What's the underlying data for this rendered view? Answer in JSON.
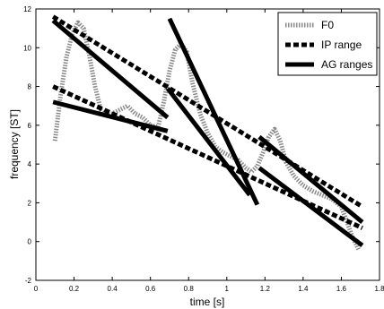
{
  "chart_data": {
    "type": "line",
    "xlabel": "time [s]",
    "ylabel": "frequency [ST]",
    "xlim": [
      0,
      1.8
    ],
    "ylim": [
      -2,
      12
    ],
    "xticks": [
      "0",
      "0.2",
      "0.4",
      "0.6",
      "0.8",
      "1",
      "1.2",
      "1.4",
      "1.6",
      "1.8"
    ],
    "yticks": [
      "-2",
      "0",
      "2",
      "4",
      "6",
      "8",
      "10",
      "12"
    ],
    "grid": false,
    "legend_position": "top-right",
    "series": [
      {
        "name": "F0",
        "style": "dotted-thick",
        "color": "#8a8a8a",
        "x": [
          0.1,
          0.13,
          0.16,
          0.19,
          0.22,
          0.25,
          0.28,
          0.31,
          0.34,
          0.37,
          0.4,
          0.44,
          0.48,
          0.52,
          0.56,
          0.6,
          0.64,
          0.67,
          0.7,
          0.73,
          0.76,
          0.79,
          0.82,
          0.86,
          0.9,
          0.94,
          0.98,
          1.02,
          1.06,
          1.1,
          1.13,
          1.16,
          1.19,
          1.22,
          1.25,
          1.28,
          1.31,
          1.35,
          1.4,
          1.45,
          1.5,
          1.55,
          1.6,
          1.63,
          1.66,
          1.69
        ],
        "y": [
          5.2,
          7.6,
          9.5,
          10.7,
          11.3,
          11.0,
          9.6,
          8.0,
          6.8,
          6.5,
          6.6,
          6.8,
          7.0,
          6.6,
          6.4,
          6.0,
          5.9,
          7.2,
          8.8,
          9.9,
          10.2,
          9.8,
          8.2,
          6.6,
          5.6,
          4.9,
          4.6,
          4.4,
          4.2,
          3.8,
          3.6,
          3.9,
          4.6,
          5.4,
          5.8,
          5.2,
          4.1,
          3.4,
          2.9,
          2.6,
          2.4,
          2.2,
          1.8,
          1.0,
          0.2,
          -0.4
        ]
      },
      {
        "name": "IP range",
        "style": "dashed-thick",
        "color": "#000000",
        "segments": [
          {
            "x": [
              0.09,
              1.71
            ],
            "y": [
              11.6,
              1.8
            ]
          },
          {
            "x": [
              0.09,
              1.71
            ],
            "y": [
              8.0,
              0.7
            ]
          }
        ]
      },
      {
        "name": "AG ranges",
        "style": "solid-thick",
        "color": "#000000",
        "segments": [
          {
            "x": [
              0.09,
              0.69
            ],
            "y": [
              11.4,
              6.4
            ]
          },
          {
            "x": [
              0.09,
              0.69
            ],
            "y": [
              7.2,
              5.7
            ]
          },
          {
            "x": [
              0.7,
              1.16
            ],
            "y": [
              11.5,
              1.9
            ]
          },
          {
            "x": [
              0.69,
              1.12
            ],
            "y": [
              7.9,
              2.4
            ]
          },
          {
            "x": [
              1.17,
              1.71
            ],
            "y": [
              5.4,
              1.0
            ]
          },
          {
            "x": [
              1.17,
              1.71
            ],
            "y": [
              3.8,
              -0.2
            ]
          }
        ]
      }
    ],
    "legend": [
      "F0",
      "IP range",
      "AG ranges"
    ]
  }
}
